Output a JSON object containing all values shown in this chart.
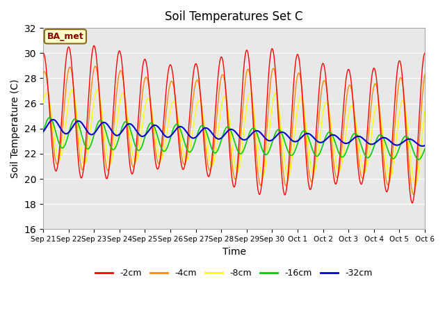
{
  "title": "Soil Temperatures Set C",
  "xlabel": "Time",
  "ylabel": "Soil Temperature (C)",
  "ylim": [
    16,
    32
  ],
  "yticks": [
    16,
    18,
    20,
    22,
    24,
    26,
    28,
    30,
    32
  ],
  "annotation": "BA_met",
  "bg_color": "#e8e8e8",
  "colors": {
    "-2cm": "#ff0000",
    "-4cm": "#ff8800",
    "-8cm": "#ffff00",
    "-16cm": "#00cc00",
    "-32cm": "#0000cc"
  },
  "x_tick_labels": [
    "Sep 21",
    "Sep 22",
    "Sep 23",
    "Sep 24",
    "Sep 25",
    "Sep 26",
    "Sep 27",
    "Sep 28",
    "Sep 29",
    "Sep 30",
    "Oct 1",
    "Oct 2",
    "Oct 3",
    "Oct 4",
    "Oct 5",
    "Oct 6"
  ],
  "n_days": 15,
  "pts_per_day": 48
}
